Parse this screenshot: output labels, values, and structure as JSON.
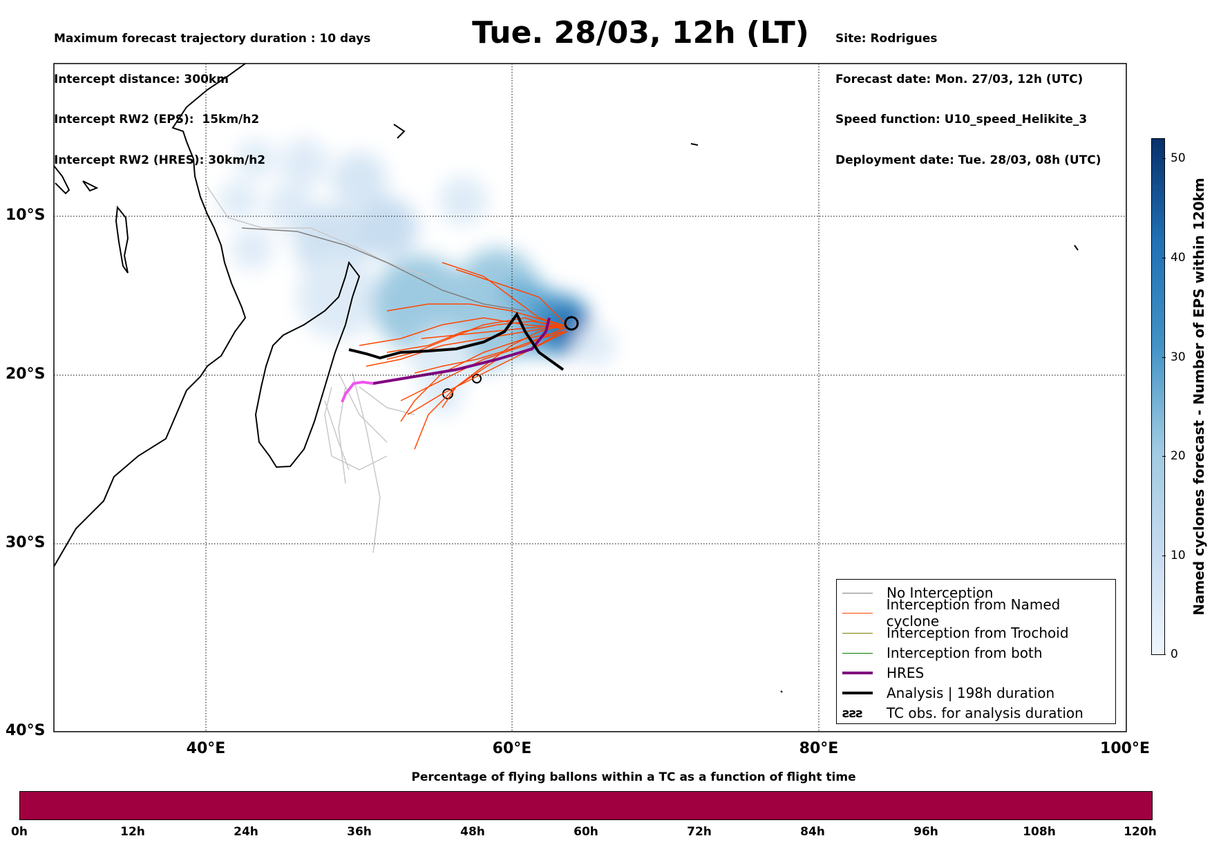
{
  "header": {
    "left_lines": [
      "Maximum forecast trajectory duration : 10 days",
      "Intercept distance: 300km",
      "Intercept RW2 (EPS):  15km/h2",
      "Intercept RW2 (HRES): 30km/h2"
    ],
    "title": "Tue. 28/03, 12h (LT)",
    "right_lines": [
      "Site: Rodrigues",
      "Forecast date: Mon. 27/03, 12h (UTC)",
      "Speed function: U10_speed_Helikite_3",
      "Deployment date: Tue. 28/03, 08h (UTC)"
    ]
  },
  "map": {
    "lat_labels": [
      "10°S",
      "20°S",
      "30°S",
      "40°S"
    ],
    "lon_labels": [
      "40°E",
      "60°E",
      "80°E",
      "100°E"
    ]
  },
  "legend": {
    "items": [
      {
        "label": "No Interception",
        "color": "#808080",
        "style": "thin"
      },
      {
        "label": "Interception from Named cyclone",
        "color": "#ff4500",
        "style": "thin"
      },
      {
        "label": "Interception from Trochoid",
        "color": "#808000",
        "style": "thin"
      },
      {
        "label": "Interception from both",
        "color": "#008000",
        "style": "thin"
      },
      {
        "label": "HRES",
        "color": "#800080",
        "style": "thick"
      },
      {
        "label": "Analysis | 198h duration",
        "color": "#000000",
        "style": "thick"
      },
      {
        "label": "TC obs. for analysis duration",
        "color": "#000000",
        "style": "symbol",
        "symbol": "ƨƨƨ"
      }
    ]
  },
  "colorbar": {
    "label": "Named cyclones forecast - Number of EPS within 120km",
    "ticks": [
      "0",
      "10",
      "20",
      "30",
      "40",
      "50"
    ],
    "color_low": "#deebf7",
    "color_high": "#08306b"
  },
  "timebar": {
    "title": "Percentage of flying ballons within a TC as a function of flight time",
    "ticks": [
      "0h",
      "12h",
      "24h",
      "36h",
      "48h",
      "60h",
      "72h",
      "84h",
      "96h",
      "108h",
      "120h"
    ],
    "color": "#a00040"
  }
}
